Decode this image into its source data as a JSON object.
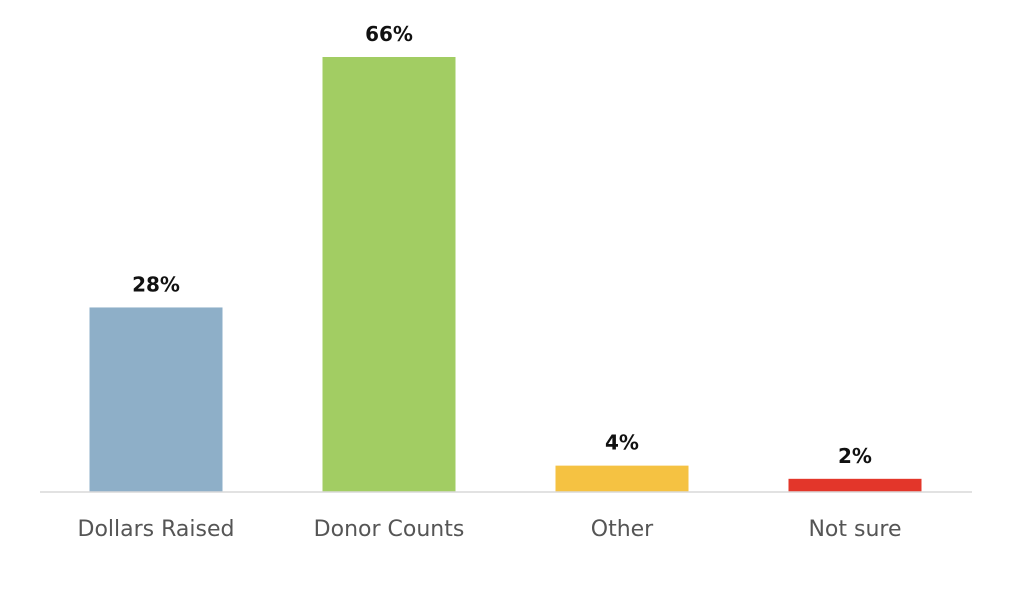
{
  "chart_data": {
    "type": "bar",
    "categories": [
      "Dollars Raised",
      "Donor Counts",
      "Other",
      "Not sure"
    ],
    "values": [
      28,
      66,
      4,
      2
    ],
    "value_labels": [
      "28%",
      "66%",
      "4%",
      "2%"
    ],
    "colors": [
      "#8eafc8",
      "#a2cd63",
      "#f5c242",
      "#e3362a"
    ],
    "title": "",
    "xlabel": "",
    "ylabel": "",
    "ylim": [
      0,
      66
    ],
    "grid": false,
    "legend": "none"
  }
}
